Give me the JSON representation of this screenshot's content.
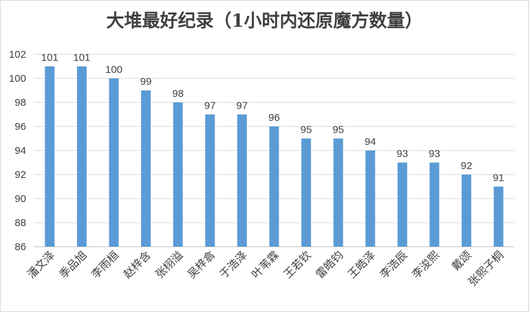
{
  "chart_data": {
    "type": "bar",
    "title": "大堆最好纪录（1小时内还原魔方数量）",
    "xlabel": "",
    "ylabel": "",
    "categories": [
      "潘文泽",
      "季品旭",
      "李雨桓",
      "赵梓含",
      "张栩溢",
      "吴梓翕",
      "于浩泽",
      "叶苇霖",
      "王若钦",
      "雷皓钧",
      "王皓泽",
      "李浩辰",
      "李浚熙",
      "戴颂",
      "张熙子桐"
    ],
    "values": [
      101,
      101,
      100,
      99,
      98,
      97,
      97,
      96,
      95,
      95,
      94,
      93,
      93,
      92,
      91
    ],
    "ylim": [
      86,
      102
    ],
    "yticks": [
      86,
      88,
      90,
      92,
      94,
      96,
      98,
      100,
      102
    ],
    "grid": true,
    "legend": "none",
    "bar_color": "#5b9bd5",
    "data_labels": true
  }
}
